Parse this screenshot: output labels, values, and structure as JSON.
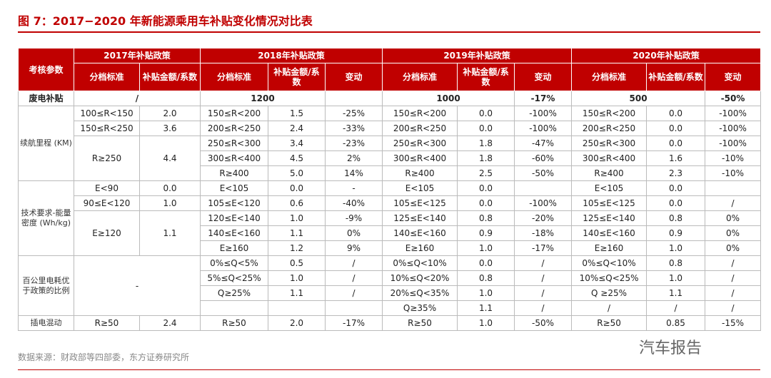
{
  "title": "图 7：2017−2020 年新能源乘用车补贴变化情况对比表",
  "header": {
    "param": "考核参数",
    "years": [
      "2017年补贴政策",
      "2018年补贴政策",
      "2019年补贴政策",
      "2020年补贴政策"
    ],
    "columns": [
      "分档标准",
      "补贴金额/系数",
      "分档标准",
      "补贴金额/系数",
      "变动",
      "分档标准",
      "补贴金额/系数",
      "变动",
      "分档标准",
      "补贴金额/系数",
      "变动"
    ]
  },
  "table": {
    "rows": [
      [
        "废电补贴",
        "/",
        "1200",
        "1000",
        "-17%",
        "500",
        "-50%"
      ],
      [
        "续航里程 (KM)",
        "100≤R<150",
        "2.0",
        "150≤R<200",
        "1.5",
        "-25%",
        "150≤R<200",
        "0.0",
        "-100%",
        "150≤R<200",
        "0.0",
        "-100%"
      ],
      [
        "150≤R<250",
        "3.6",
        "200≤R<250",
        "2.4",
        "-33%",
        "200≤R<250",
        "0.0",
        "-100%",
        "200≤R<250",
        "0.0",
        "-100%"
      ],
      [
        "R≥250",
        "4.4",
        "250≤R<300",
        "3.4",
        "-23%",
        "250≤R<300",
        "1.8",
        "-47%",
        "250≤R<300",
        "0.0",
        "-100%"
      ],
      [
        "300≤R<400",
        "4.5",
        "2%",
        "300≤R<400",
        "1.8",
        "-60%",
        "300≤R<400",
        "1.6",
        "-10%"
      ],
      [
        "R≥400",
        "5.0",
        "14%",
        "R≥400",
        "2.5",
        "-50%",
        "R≥400",
        "2.3",
        "-10%"
      ],
      [
        "技术要求-能量密度 (Wh/kg)",
        "E<90",
        "0.0",
        "E<105",
        "0.0",
        "-",
        "E<105",
        "0.0",
        "E<105",
        "0.0"
      ],
      [
        "90≤E<120",
        "1.0",
        "105≤E<120",
        "0.6",
        "-40%",
        "105≤E<125",
        "0.0",
        "-100%",
        "105≤E<125",
        "0.0",
        "/"
      ],
      [
        "E≥120",
        "1.1",
        "120≤E<140",
        "1.0",
        "-9%",
        "125≤E<140",
        "0.8",
        "-20%",
        "125≤E<140",
        "0.8",
        "0%"
      ],
      [
        "140≤E<160",
        "1.1",
        "0%",
        "140≤E<160",
        "0.9",
        "-18%",
        "140≤E<160",
        "0.9",
        "0%"
      ],
      [
        "E≥160",
        "1.2",
        "9%",
        "E≥160",
        "1.0",
        "-17%",
        "E≥160",
        "1.0",
        "0%"
      ],
      [
        "百公里电耗优于政策的比例",
        "-",
        "0%≤Q<5%",
        "0.5",
        "/",
        "0%≤Q<10%",
        "0.0",
        "/",
        "0%≤Q<10%",
        "0.8",
        "/"
      ],
      [
        "5%≤Q<25%",
        "1.0",
        "/",
        "10%≤Q<20%",
        "0.8",
        "/",
        "10%≤Q<25%",
        "1.0",
        "/"
      ],
      [
        "Q≥25%",
        "1.1",
        "/",
        "20%≤Q<35%",
        "1.0",
        "/",
        "Q ≥25%",
        "1.1",
        "/"
      ],
      [
        "Q≥35%",
        "1.1",
        "/",
        "/",
        "/",
        "/"
      ],
      [
        "插电混动",
        "R≥50",
        "2.4",
        "R≥50",
        "2.0",
        "-17%",
        "R≥50",
        "1.0",
        "-50%",
        "R≥50",
        "0.85",
        "-15%"
      ]
    ]
  },
  "source": "数据来源：财政部等四部委，东方证券研究所",
  "watermark": "汽车报告"
}
